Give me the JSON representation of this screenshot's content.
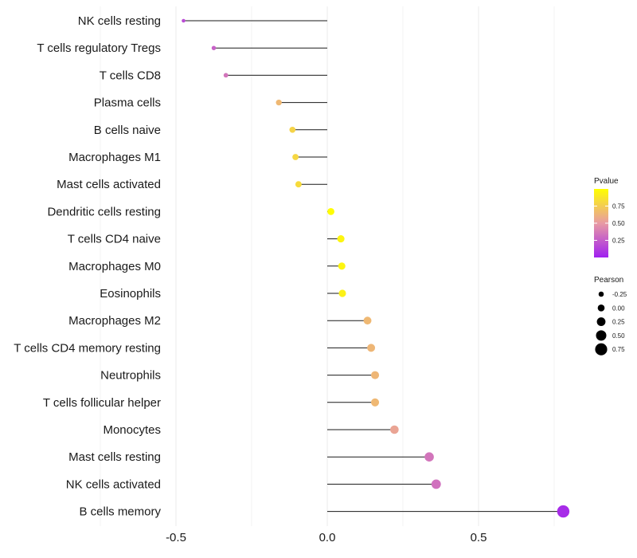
{
  "chart_data": {
    "type": "lollipop",
    "title": "",
    "xlabel": "",
    "ylabel": "",
    "xlim": [
      -0.8,
      0.82
    ],
    "x_ticks": [
      -0.5,
      0.0,
      0.5
    ],
    "x_tick_labels": [
      "-0.5",
      "0.0",
      "0.5"
    ],
    "grid": true,
    "legend_placement": "right",
    "categories": [
      "NK cells resting",
      "T cells regulatory  Tregs",
      "T cells CD8",
      "Plasma cells",
      "B cells naive",
      "Macrophages M1",
      "Mast cells activated",
      "Dendritic cells resting",
      "T cells CD4 naive",
      "Macrophages M0",
      "Eosinophils",
      "Macrophages M2",
      "T cells CD4 memory resting",
      "Neutrophils",
      "T cells follicular helper",
      "Monocytes",
      "Mast cells resting",
      "NK cells activated",
      "B cells memory"
    ],
    "values": [
      -0.475,
      -0.375,
      -0.335,
      -0.16,
      -0.115,
      -0.105,
      -0.095,
      0.012,
      0.045,
      0.048,
      0.05,
      0.133,
      0.145,
      0.158,
      0.158,
      0.222,
      0.337,
      0.36,
      0.78
    ],
    "pvalues": [
      0.18,
      0.27,
      0.35,
      0.65,
      0.78,
      0.8,
      0.82,
      0.99,
      0.95,
      0.95,
      0.93,
      0.65,
      0.64,
      0.64,
      0.65,
      0.55,
      0.35,
      0.33,
      0.05
    ],
    "legend_color": {
      "title": "Pvalue",
      "ticks": [
        0.25,
        0.5,
        0.75
      ],
      "tick_labels": [
        "0.25",
        "0.50",
        "0.75"
      ],
      "range": [
        0.0,
        1.0
      ],
      "low_color": "#a020f0",
      "mid_color": "#e89aa4",
      "high_color": "#ffff00"
    },
    "legend_size": {
      "title": "Pearson",
      "values": [
        -0.25,
        0.0,
        0.25,
        0.5,
        0.75
      ],
      "labels": [
        "-0.25",
        "0.00",
        "0.25",
        "0.50",
        "0.75"
      ]
    }
  }
}
